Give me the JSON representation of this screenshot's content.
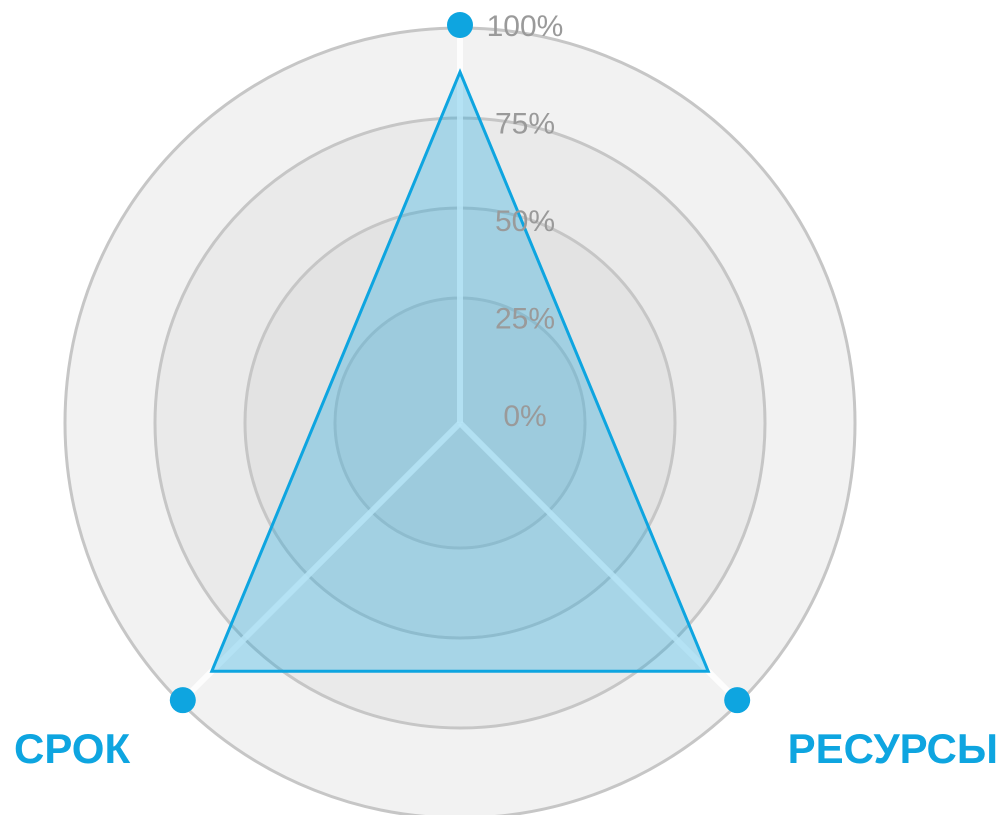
{
  "chart_data": {
    "type": "radar",
    "categories": [
      null,
      "РЕСУРСЫ",
      "СРОК"
    ],
    "series": [
      {
        "color": "#0ea5e0",
        "values": [
          90,
          90,
          90
        ]
      }
    ],
    "ylim": [
      0,
      100
    ],
    "yticks": [
      {
        "value": 0,
        "label": "0%"
      },
      {
        "value": 25,
        "label": "25%"
      },
      {
        "value": 50,
        "label": "50%"
      },
      {
        "value": 75,
        "label": "75%"
      },
      {
        "value": 100,
        "label": "100%"
      }
    ]
  }
}
